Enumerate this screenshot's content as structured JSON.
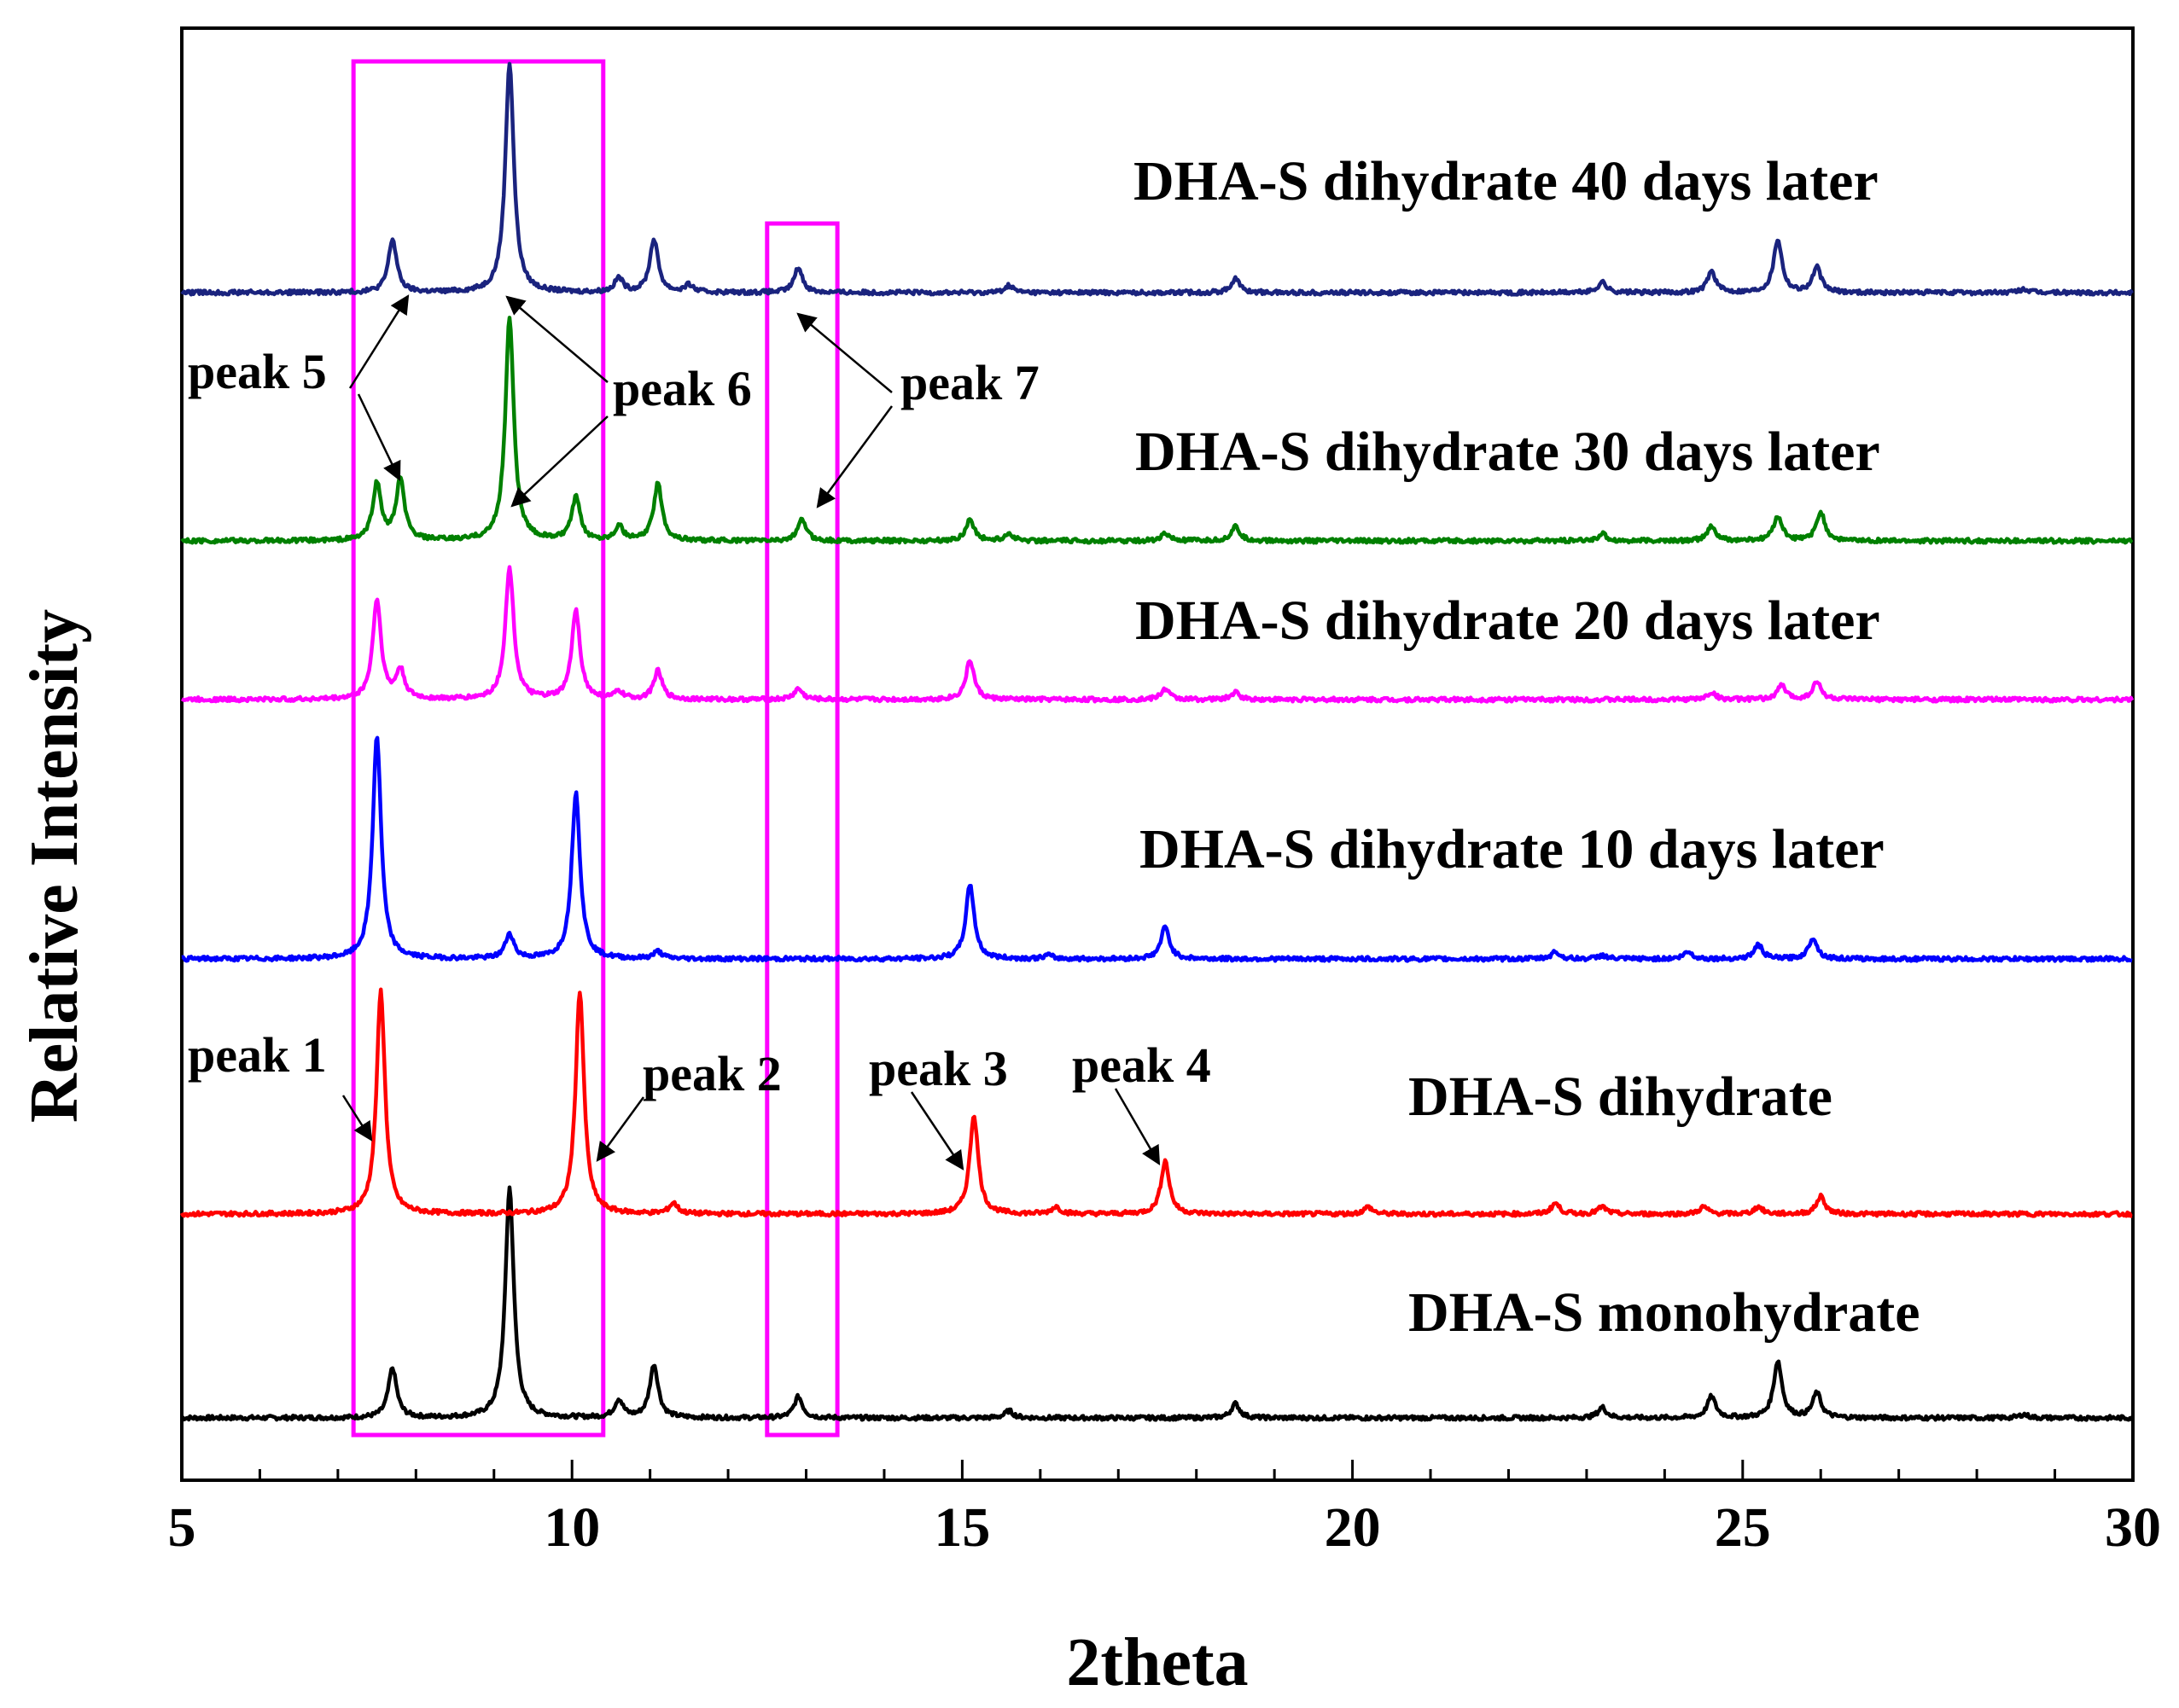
{
  "chart_data": {
    "type": "line",
    "xlabel": "2theta",
    "ylabel": "Relative Intensity",
    "xlim": [
      5,
      30
    ],
    "x_ticks": [
      "5",
      "10",
      "15",
      "20",
      "25",
      "30"
    ],
    "y_ticks_labeled": false,
    "grid": false,
    "legend": "none (series labeled inline above each trace)",
    "stacked_offset": true,
    "series": [
      {
        "name": "DHA-S monohydrate",
        "color": "#000000",
        "peaks": [
          [
            7.7,
            0.14
          ],
          [
            9.2,
            0.65
          ],
          [
            10.6,
            0.05
          ],
          [
            11.05,
            0.15
          ],
          [
            12.9,
            0.06
          ],
          [
            15.6,
            0.02
          ],
          [
            18.5,
            0.04
          ],
          [
            23.2,
            0.03
          ],
          [
            24.6,
            0.06
          ],
          [
            25.45,
            0.16
          ],
          [
            25.95,
            0.07
          ],
          [
            28.6,
            0.01
          ]
        ]
      },
      {
        "name": "DHA-S dihydrate",
        "color": "#ff0000",
        "peaks": [
          [
            7.55,
            0.63
          ],
          [
            10.1,
            0.63
          ],
          [
            11.3,
            0.03
          ],
          [
            15.15,
            0.28
          ],
          [
            16.2,
            0.02
          ],
          [
            17.6,
            0.15
          ],
          [
            20.2,
            0.02
          ],
          [
            22.6,
            0.03
          ],
          [
            23.2,
            0.02
          ],
          [
            24.5,
            0.02
          ],
          [
            25.2,
            0.02
          ],
          [
            26.0,
            0.05
          ]
        ]
      },
      {
        "name": "DHA-S dihydrate 10 days later",
        "color": "#0000ff",
        "peaks": [
          [
            7.5,
            0.63
          ],
          [
            9.2,
            0.07
          ],
          [
            10.05,
            0.47
          ],
          [
            11.1,
            0.02
          ],
          [
            15.1,
            0.21
          ],
          [
            16.1,
            0.01
          ],
          [
            17.6,
            0.09
          ],
          [
            22.6,
            0.02
          ],
          [
            23.2,
            0.01
          ],
          [
            24.3,
            0.02
          ],
          [
            25.2,
            0.04
          ],
          [
            25.9,
            0.06
          ]
        ]
      },
      {
        "name": "DHA-S dihydrate 20 days later",
        "color": "#ff00ff",
        "peaks": [
          [
            7.5,
            0.28
          ],
          [
            7.8,
            0.08
          ],
          [
            9.2,
            0.37
          ],
          [
            10.05,
            0.25
          ],
          [
            10.6,
            0.02
          ],
          [
            11.1,
            0.08
          ],
          [
            12.9,
            0.03
          ],
          [
            15.1,
            0.11
          ],
          [
            17.6,
            0.03
          ],
          [
            18.5,
            0.02
          ],
          [
            24.6,
            0.02
          ],
          [
            25.5,
            0.04
          ],
          [
            25.95,
            0.05
          ]
        ]
      },
      {
        "name": "DHA-S dihydrate 30 days later",
        "color": "#008000",
        "peaks": [
          [
            7.5,
            0.16
          ],
          [
            7.8,
            0.17
          ],
          [
            9.2,
            0.63
          ],
          [
            10.05,
            0.12
          ],
          [
            10.6,
            0.04
          ],
          [
            11.1,
            0.16
          ],
          [
            12.95,
            0.06
          ],
          [
            15.1,
            0.06
          ],
          [
            15.6,
            0.02
          ],
          [
            17.6,
            0.02
          ],
          [
            18.5,
            0.04
          ],
          [
            23.2,
            0.02
          ],
          [
            24.6,
            0.04
          ],
          [
            25.45,
            0.07
          ],
          [
            26.0,
            0.08
          ]
        ]
      },
      {
        "name": "DHA-S dihydrate 40 days later",
        "color": "#1a237e",
        "peaks": [
          [
            7.7,
            0.15
          ],
          [
            9.2,
            0.65
          ],
          [
            10.6,
            0.04
          ],
          [
            11.05,
            0.15
          ],
          [
            11.5,
            0.02
          ],
          [
            12.9,
            0.07
          ],
          [
            15.6,
            0.02
          ],
          [
            18.5,
            0.04
          ],
          [
            23.2,
            0.03
          ],
          [
            24.6,
            0.06
          ],
          [
            25.45,
            0.15
          ],
          [
            25.95,
            0.07
          ],
          [
            28.6,
            0.01
          ]
        ]
      }
    ],
    "annotations": [
      {
        "text": "peak 1",
        "x": 7.55,
        "series": "DHA-S dihydrate"
      },
      {
        "text": "peak 2",
        "x": 10.1,
        "series": "DHA-S dihydrate"
      },
      {
        "text": "peak 3",
        "x": 15.15,
        "series": "DHA-S dihydrate"
      },
      {
        "text": "peak 4",
        "x": 17.6,
        "series": "DHA-S dihydrate"
      },
      {
        "text": "peak 5",
        "x": 7.8,
        "series": "DHA-S dihydrate 30 days later / 40 days later"
      },
      {
        "text": "peak 6",
        "x": 9.2,
        "series": "DHA-S dihydrate 30 days later / 40 days later"
      },
      {
        "text": "peak 7",
        "x": 12.95,
        "series": "DHA-S dihydrate 30 days later / 40 days later"
      }
    ],
    "highlight_boxes": [
      {
        "x_range": [
          7.2,
          10.4
        ],
        "color": "#ff00ff"
      },
      {
        "x_range": [
          12.5,
          13.4
        ],
        "color": "#ff00ff"
      }
    ]
  }
}
